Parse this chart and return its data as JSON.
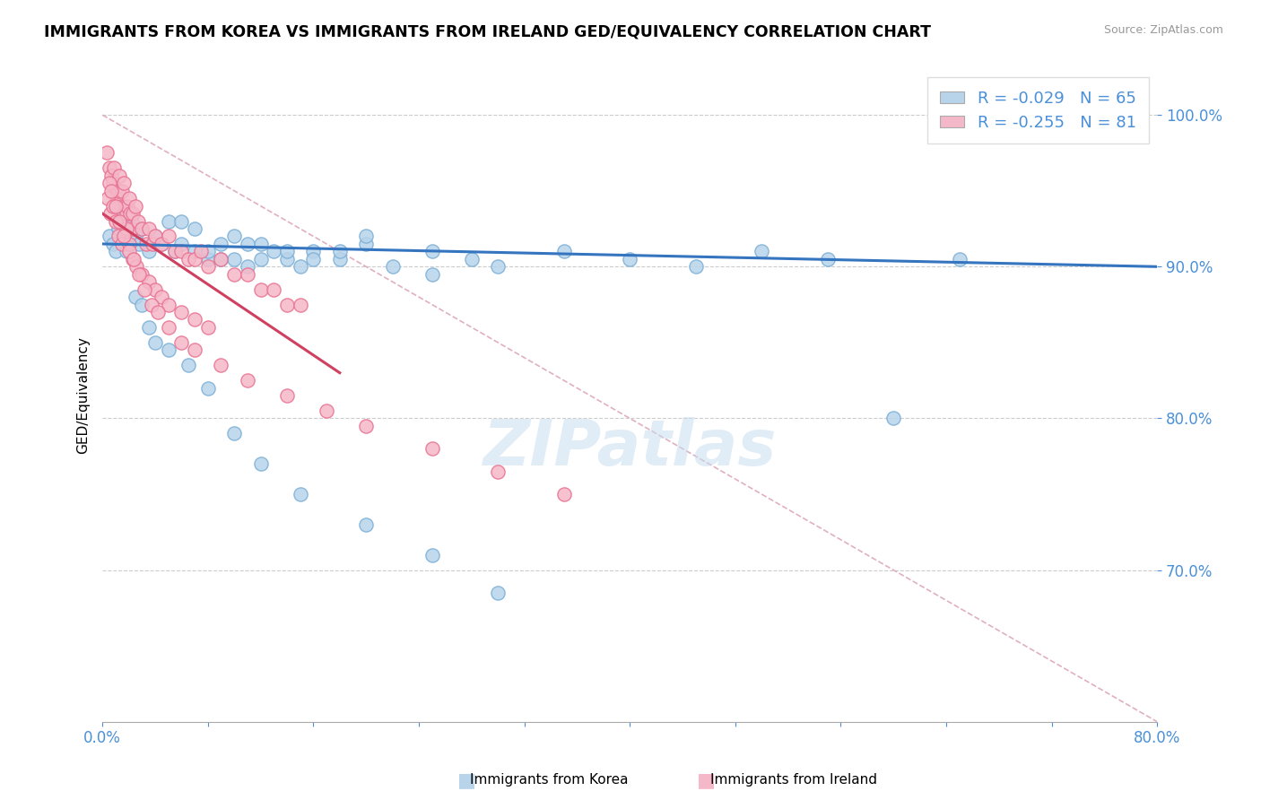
{
  "title": "IMMIGRANTS FROM KOREA VS IMMIGRANTS FROM IRELAND GED/EQUIVALENCY CORRELATION CHART",
  "source": "Source: ZipAtlas.com",
  "ylabel": "GED/Equivalency",
  "yticks": [
    70.0,
    80.0,
    90.0,
    100.0
  ],
  "ytick_labels": [
    "70.0%",
    "80.0%",
    "90.0%",
    "100.0%"
  ],
  "xmin": 0.0,
  "xmax": 80.0,
  "ymin": 60.0,
  "ymax": 103.0,
  "korea_color": "#b8d4ea",
  "ireland_color": "#f5b8c8",
  "korea_edge_color": "#7aaed6",
  "ireland_edge_color": "#e87090",
  "korea_R": -0.029,
  "korea_N": 65,
  "ireland_R": -0.255,
  "ireland_N": 81,
  "legend_box_korea": "#b8d4ea",
  "legend_box_ireland": "#f5b8c8",
  "trend_korea_color": "#3575c0",
  "trend_ireland_color": "#d04060",
  "diag_color": "#e0b0c0",
  "korea_scatter_x": [
    0.5,
    0.8,
    1.0,
    1.2,
    1.5,
    1.8,
    2.0,
    2.2,
    2.5,
    2.8,
    3.0,
    3.5,
    4.0,
    4.5,
    5.0,
    5.5,
    6.0,
    7.0,
    8.0,
    9.0,
    10.0,
    11.0,
    12.0,
    13.0,
    14.0,
    15.0,
    16.0,
    18.0,
    20.0,
    22.0,
    25.0,
    28.0,
    30.0,
    35.0,
    40.0,
    45.0,
    50.0,
    55.0,
    60.0,
    65.0,
    6.0,
    7.0,
    8.0,
    9.0,
    10.0,
    11.0,
    12.0,
    14.0,
    16.0,
    18.0,
    20.0,
    25.0,
    2.5,
    3.0,
    3.5,
    4.0,
    5.0,
    6.5,
    8.0,
    10.0,
    12.0,
    15.0,
    20.0,
    25.0,
    30.0
  ],
  "korea_scatter_y": [
    92.0,
    91.5,
    91.0,
    92.5,
    93.5,
    91.0,
    91.5,
    93.0,
    92.0,
    91.5,
    92.5,
    91.0,
    92.0,
    91.5,
    93.0,
    91.0,
    91.5,
    91.0,
    90.5,
    91.5,
    90.5,
    90.0,
    91.5,
    91.0,
    90.5,
    90.0,
    91.0,
    90.5,
    91.5,
    90.0,
    91.0,
    90.5,
    90.0,
    91.0,
    90.5,
    90.0,
    91.0,
    90.5,
    80.0,
    90.5,
    93.0,
    92.5,
    91.0,
    90.5,
    92.0,
    91.5,
    90.5,
    91.0,
    90.5,
    91.0,
    92.0,
    89.5,
    88.0,
    87.5,
    86.0,
    85.0,
    84.5,
    83.5,
    82.0,
    79.0,
    77.0,
    75.0,
    73.0,
    71.0,
    68.5
  ],
  "ireland_scatter_x": [
    0.3,
    0.5,
    0.7,
    0.8,
    0.9,
    1.0,
    1.1,
    1.2,
    1.3,
    1.4,
    1.5,
    1.6,
    1.7,
    1.8,
    1.9,
    2.0,
    2.1,
    2.2,
    2.3,
    2.5,
    2.7,
    3.0,
    3.3,
    3.5,
    3.8,
    4.0,
    4.5,
    5.0,
    5.5,
    6.0,
    6.5,
    7.0,
    7.5,
    8.0,
    9.0,
    10.0,
    11.0,
    12.0,
    13.0,
    14.0,
    15.0,
    0.4,
    0.6,
    0.8,
    1.0,
    1.2,
    1.5,
    1.8,
    2.0,
    2.3,
    2.6,
    3.0,
    3.5,
    4.0,
    4.5,
    5.0,
    6.0,
    7.0,
    8.0,
    0.5,
    0.7,
    1.0,
    1.3,
    1.6,
    2.0,
    2.4,
    2.8,
    3.2,
    3.7,
    4.2,
    5.0,
    6.0,
    7.0,
    9.0,
    11.0,
    14.0,
    17.0,
    20.0,
    25.0,
    30.0,
    35.0
  ],
  "ireland_scatter_y": [
    97.5,
    96.5,
    96.0,
    95.5,
    96.5,
    95.0,
    94.5,
    95.0,
    96.0,
    94.0,
    95.0,
    95.5,
    94.0,
    93.5,
    94.0,
    94.5,
    93.5,
    92.5,
    93.5,
    94.0,
    93.0,
    92.5,
    91.5,
    92.5,
    91.5,
    92.0,
    91.5,
    92.0,
    91.0,
    91.0,
    90.5,
    90.5,
    91.0,
    90.0,
    90.5,
    89.5,
    89.5,
    88.5,
    88.5,
    87.5,
    87.5,
    94.5,
    93.5,
    94.0,
    93.0,
    92.0,
    91.5,
    92.5,
    91.5,
    90.5,
    90.0,
    89.5,
    89.0,
    88.5,
    88.0,
    87.5,
    87.0,
    86.5,
    86.0,
    95.5,
    95.0,
    94.0,
    93.0,
    92.0,
    91.0,
    90.5,
    89.5,
    88.5,
    87.5,
    87.0,
    86.0,
    85.0,
    84.5,
    83.5,
    82.5,
    81.5,
    80.5,
    79.5,
    78.0,
    76.5,
    75.0
  ]
}
